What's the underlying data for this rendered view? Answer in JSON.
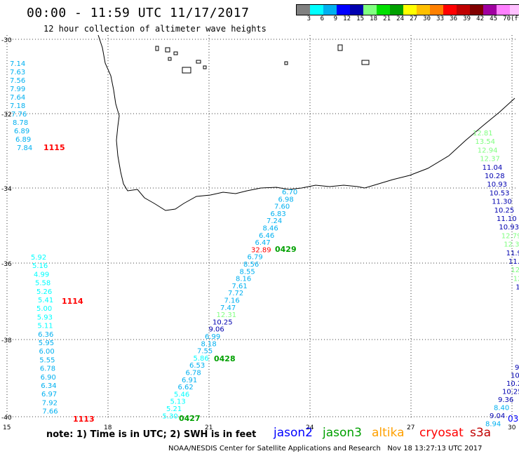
{
  "header": {
    "title": "00:00 - 11:59 UTC 11/17/2017",
    "subtitle": "12 hour collection of altimeter wave heights"
  },
  "colorbar": {
    "colors": [
      "#808080",
      "#00ffff",
      "#00b0f0",
      "#0000ff",
      "#0000b0",
      "#80ff80",
      "#00e000",
      "#00a000",
      "#ffff00",
      "#ffc000",
      "#ff8000",
      "#ff0000",
      "#c00000",
      "#800000",
      "#a000a0",
      "#ff80ff",
      "#ffc0ff",
      "#000000"
    ],
    "labels": [
      "3",
      "6",
      "9",
      "12",
      "15",
      "18",
      "21",
      "24",
      "27",
      "30",
      "33",
      "36",
      "39",
      "42",
      "45",
      "70",
      "(ft)"
    ]
  },
  "axes": {
    "lat_labels": [
      "-30",
      "-32",
      "-34",
      "-36",
      "-38",
      "-40"
    ],
    "lon_labels": [
      "15",
      "18",
      "21",
      "24",
      "27",
      "30"
    ]
  },
  "tracks": [
    {
      "name": "1115",
      "color": "#00b0f0",
      "label_color": "#ff0000",
      "values": [
        "7.14",
        "7.63",
        "7.56",
        "7.99",
        "7.64",
        "7.18",
        "7.76",
        "8.78",
        "6.89",
        "6.89",
        "7.84"
      ]
    },
    {
      "name": "1114",
      "color": "#00ffff",
      "label_color": "#ff0000",
      "values": [
        "5.92",
        "5.16",
        "4.99",
        "5.58",
        "5.26",
        "5.41",
        "5.00",
        "5.93",
        "5.11",
        "6.36",
        "5.95",
        "6.00",
        "5.55",
        "6.78",
        "6.90",
        "6.34",
        "6.97",
        "7.92",
        "7.66"
      ]
    },
    {
      "name": "1113",
      "label_color": "#ff0000"
    },
    {
      "name": "0429",
      "label_color": "#00a000"
    },
    {
      "name": "0428",
      "label_color": "#00a000"
    },
    {
      "name": "0427",
      "label_color": "#00a000"
    }
  ],
  "center_track_values": [
    {
      "v": "6.70",
      "c": "#00b0f0"
    },
    {
      "v": "6.98",
      "c": "#00b0f0"
    },
    {
      "v": "7.60",
      "c": "#00b0f0"
    },
    {
      "v": "6.83",
      "c": "#00b0f0"
    },
    {
      "v": "7.24",
      "c": "#00b0f0"
    },
    {
      "v": "8.46",
      "c": "#00b0f0"
    },
    {
      "v": "6.46",
      "c": "#00b0f0"
    },
    {
      "v": "6.47",
      "c": "#00b0f0"
    },
    {
      "v": "32.89",
      "c": "#ff0000"
    },
    {
      "v": "6.79",
      "c": "#00b0f0"
    },
    {
      "v": "8.56",
      "c": "#00b0f0"
    },
    {
      "v": "8.55",
      "c": "#00b0f0"
    },
    {
      "v": "8.16",
      "c": "#00b0f0"
    },
    {
      "v": "7.61",
      "c": "#00b0f0"
    },
    {
      "v": "7.72",
      "c": "#00b0f0"
    },
    {
      "v": "7.16",
      "c": "#00b0f0"
    },
    {
      "v": "7.47",
      "c": "#00b0f0"
    },
    {
      "v": "12.31",
      "c": "#80ff80"
    },
    {
      "v": "10.25",
      "c": "#0000b0"
    },
    {
      "v": "9.06",
      "c": "#0000b0"
    },
    {
      "v": "6.99",
      "c": "#00b0f0"
    },
    {
      "v": "8.18",
      "c": "#00b0f0"
    },
    {
      "v": "7.55",
      "c": "#00b0f0"
    },
    {
      "v": "5.86",
      "c": "#00ffff"
    },
    {
      "v": "6.53",
      "c": "#00b0f0"
    },
    {
      "v": "6.78",
      "c": "#00b0f0"
    },
    {
      "v": "6.91",
      "c": "#00b0f0"
    },
    {
      "v": "6.62",
      "c": "#00b0f0"
    },
    {
      "v": "5.46",
      "c": "#00ffff"
    },
    {
      "v": "5.13",
      "c": "#00ffff"
    },
    {
      "v": "5.21",
      "c": "#00ffff"
    },
    {
      "v": "5.30",
      "c": "#00ffff"
    }
  ],
  "right_track_values": [
    {
      "v": "12.81",
      "c": "#80ff80"
    },
    {
      "v": "13.54",
      "c": "#80ff80"
    },
    {
      "v": "12.94",
      "c": "#80ff80"
    },
    {
      "v": "12.37",
      "c": "#80ff80"
    },
    {
      "v": "11.04",
      "c": "#0000b0"
    },
    {
      "v": "10.28",
      "c": "#0000b0"
    },
    {
      "v": "10.93",
      "c": "#0000b0"
    },
    {
      "v": "10.53",
      "c": "#0000b0"
    },
    {
      "v": "11.30",
      "c": "#0000b0"
    },
    {
      "v": "10.25",
      "c": "#0000b0"
    },
    {
      "v": "11.10",
      "c": "#0000b0"
    },
    {
      "v": "10.93",
      "c": "#0000b0"
    },
    {
      "v": "12.79",
      "c": "#80ff80"
    },
    {
      "v": "12.3",
      "c": "#80ff80"
    },
    {
      "v": "11.9",
      "c": "#0000b0"
    },
    {
      "v": "11.",
      "c": "#0000b0"
    },
    {
      "v": "12.",
      "c": "#80ff80"
    },
    {
      "v": "12",
      "c": "#80ff80"
    },
    {
      "v": "1",
      "c": "#0000b0"
    }
  ],
  "right_track2_values": [
    {
      "v": "9",
      "c": "#0000b0"
    },
    {
      "v": "10.",
      "c": "#0000b0"
    },
    {
      "v": "10.2",
      "c": "#0000b0"
    },
    {
      "v": "10.25",
      "c": "#0000b0"
    },
    {
      "v": "9.36",
      "c": "#0000b0"
    },
    {
      "v": "8.40",
      "c": "#00b0f0"
    },
    {
      "v": "9.04",
      "c": "#0000b0"
    },
    {
      "v": "8.94",
      "c": "#00b0f0"
    }
  ],
  "right_edge_label": "03",
  "legend": {
    "note": "note: 1) Time is in UTC; 2) SWH is in feet",
    "satellites": [
      {
        "name": "jason2",
        "color": "#0000ff"
      },
      {
        "name": "jason3",
        "color": "#00a000"
      },
      {
        "name": "altika",
        "color": "#ffa000"
      },
      {
        "name": "cryosat",
        "color": "#ff0000"
      },
      {
        "name": "s3a",
        "color": "#c00000"
      }
    ]
  },
  "credit": "NOAA/NESDIS Center for Satellite Applications and Research   Nov 18 13:27:13 UTC 2017"
}
